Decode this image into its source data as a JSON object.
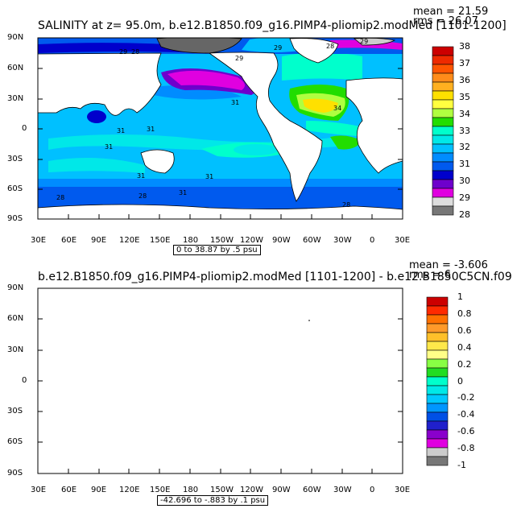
{
  "panel1": {
    "title": "SALINITY at z=  95.0m, b.e12.B1850.f09_g16.PIMP4-pliomip2.modMed [1101-1200]",
    "stat1": "mean = 21.59",
    "stat2": "rms = 26.07",
    "range": "0 to 38.87 by .5 psu",
    "colorbar_labels": [
      "38",
      "37",
      "36",
      "35",
      "34",
      "33",
      "32",
      "31",
      "30",
      "29",
      "28"
    ],
    "contour_labels": [
      "29",
      "28",
      "28",
      "29",
      "29",
      "29",
      "31",
      "31",
      "31",
      "34",
      "31",
      "31",
      "31",
      "31",
      "28",
      "28",
      "28"
    ]
  },
  "panel2": {
    "title": "b.e12.B1850.f09_g16.PIMP4-pliomip2.modMed [1101-1200] - b.e12.B1850C5CN.f09",
    "stat1": "mean = -3.606",
    "stat2": "rms = 6",
    "range": "-42.696 to -.883 by .1 psu",
    "colorbar_labels": [
      "1",
      "0.8",
      "0.6",
      "0.4",
      "0.2",
      "0",
      "-0.2",
      "-0.4",
      "-0.6",
      "-0.8",
      "-1"
    ]
  },
  "lat_labels": [
    "90N",
    "60N",
    "30N",
    "0",
    "30S",
    "60S",
    "90S"
  ],
  "lon_labels": [
    "30E",
    "60E",
    "90E",
    "120E",
    "150E",
    "180",
    "150W",
    "120W",
    "90W",
    "60W",
    "30W",
    "0",
    "30E"
  ],
  "colors": {
    "land": "#ffffff",
    "palette1": [
      "#cc0000",
      "#ee2a00",
      "#ff5500",
      "#ff8c1a",
      "#ffb020",
      "#ffe000",
      "#ffff40",
      "#b0ff40",
      "#22dd00",
      "#00ffcc",
      "#00e8e8",
      "#00c0ff",
      "#008cff",
      "#005aee",
      "#0000cc",
      "#6e00cc",
      "#e000e0",
      "#dddddd",
      "#777777"
    ],
    "palette2": [
      "#cc0000",
      "#ff2a00",
      "#ff7000",
      "#ff9a2a",
      "#ffc02a",
      "#ffe84a",
      "#ffff88",
      "#88ff44",
      "#22dd22",
      "#00ffcc",
      "#00e8e8",
      "#00c8ff",
      "#0096ff",
      "#0050e6",
      "#2020cc",
      "#8a00cc",
      "#e000e0",
      "#cccccc",
      "#777777"
    ]
  }
}
